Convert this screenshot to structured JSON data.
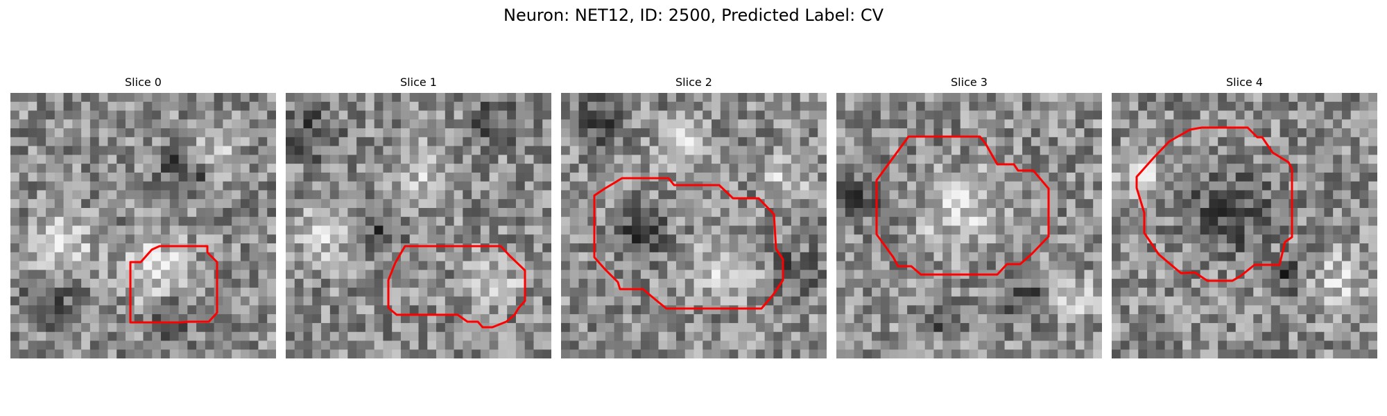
{
  "figure": {
    "title": "Neuron: NET12, ID: 2500, Predicted Label: CV"
  },
  "panels": [
    {
      "title": "Slice 0",
      "outline_color": "#ff0000"
    },
    {
      "title": "Slice 1",
      "outline_color": "#ff0000"
    },
    {
      "title": "Slice 2",
      "outline_color": "#ff0000"
    },
    {
      "title": "Slice 3",
      "outline_color": "#ff0000"
    },
    {
      "title": "Slice 4",
      "outline_color": "#ff0000"
    }
  ],
  "colors": {
    "background": "#ffffff",
    "contour": "#ff0000"
  }
}
